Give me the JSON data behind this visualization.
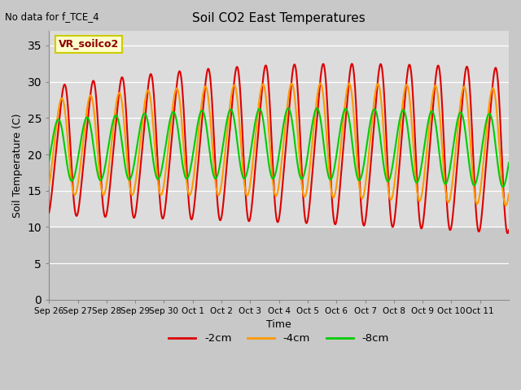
{
  "title": "Soil CO2 East Temperatures",
  "xlabel": "Time",
  "ylabel": "Soil Temperature (C)",
  "top_left_note": "No data for f_TCE_4",
  "legend_box_label": "VR_soilco2",
  "ylim": [
    0,
    37
  ],
  "yticks": [
    0,
    5,
    10,
    15,
    20,
    25,
    30,
    35
  ],
  "xtick_labels": [
    "Sep 26",
    "Sep 27",
    "Sep 28",
    "Sep 29",
    "Sep 30",
    "Oct 1",
    "Oct 2",
    "Oct 3",
    "Oct 4",
    "Oct 5",
    "Oct 6",
    "Oct 7",
    "Oct 8",
    "Oct 9",
    "Oct 10",
    "Oct 11"
  ],
  "colors": {
    "-2cm": "#dd0000",
    "-4cm": "#ff9900",
    "-8cm": "#00cc00"
  },
  "line_width": 1.5,
  "shaded_data_color": "#dcdcdc",
  "shaded_below_color": "#c8c8c8",
  "bg_color": "#d8d8d8",
  "legend_entries": [
    "-2cm",
    "-4cm",
    "-8cm"
  ]
}
